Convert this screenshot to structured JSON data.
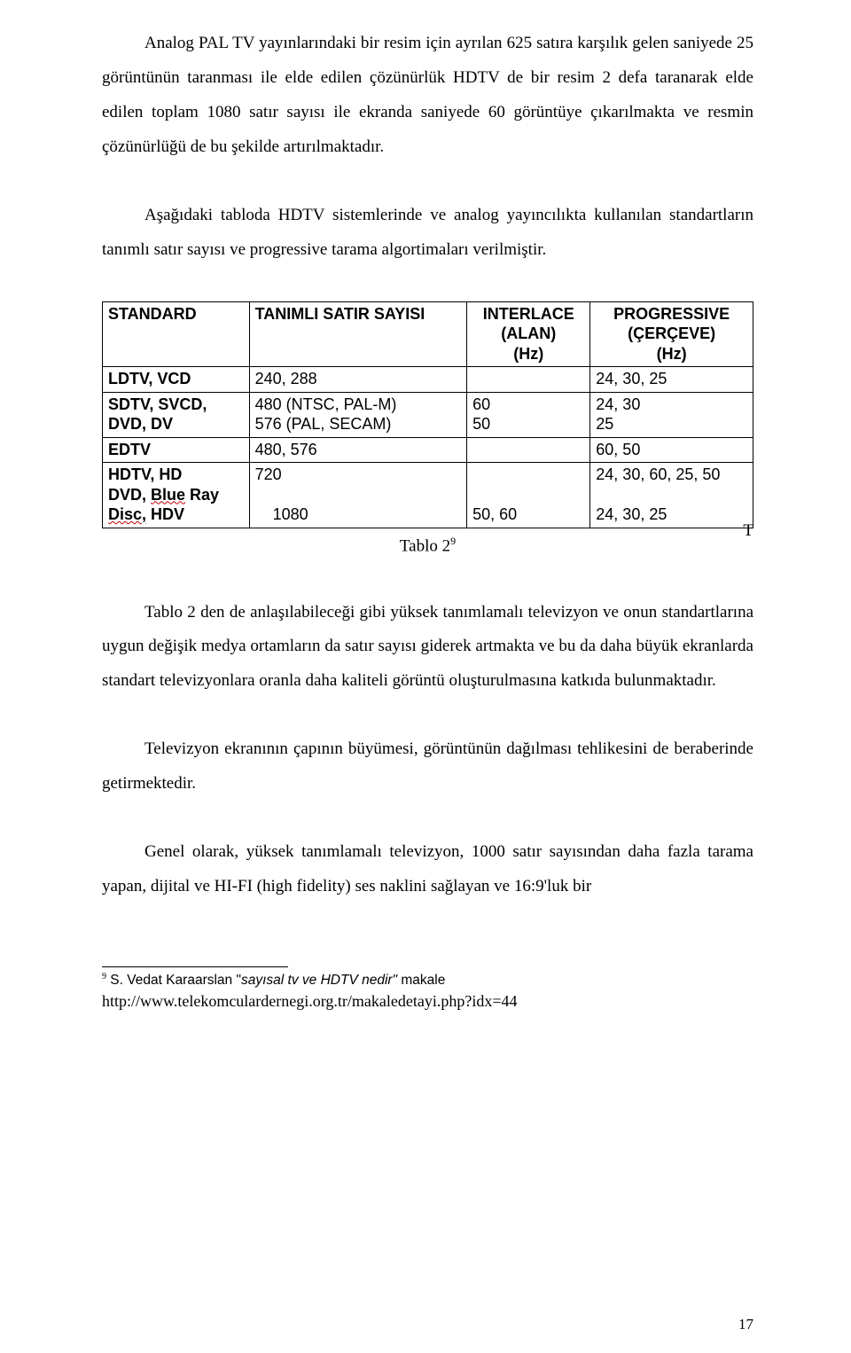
{
  "paragraphs": {
    "p1": "Analog PAL TV yayınlarındaki bir resim için ayrılan 625 satıra karşılık gelen saniyede 25 görüntünün taranması ile elde edilen çözünürlük HDTV de bir resim 2 defa taranarak elde edilen toplam 1080 satır sayısı ile ekranda saniyede 60 görüntüye çıkarılmakta ve resmin çözünürlüğü de bu şekilde artırılmaktadır.",
    "p2": "Aşağıdaki tabloda HDTV sistemlerinde ve analog yayıncılıkta kullanılan standartların tanımlı satır sayısı ve progressive tarama algortimaları verilmiştir.",
    "p3": "Tablo 2 den de anlaşılabileceği gibi yüksek tanımlamalı televizyon ve onun standartlarına uygun değişik medya ortamların da satır sayısı giderek artmakta ve bu da daha büyük ekranlarda standart televizyonlara oranla daha kaliteli görüntü oluşturulmasına katkıda bulunmaktadır.",
    "p4": "Televizyon ekranının çapının büyümesi, görüntünün dağılması tehlikesini de beraberinde getirmektedir.",
    "p5": "Genel olarak, yüksek tanımlamalı televizyon, 1000 satır sayısından daha fazla tarama yapan, dijital ve HI-FI (high fidelity) ses naklini sağlayan ve 16:9'luk bir"
  },
  "table": {
    "headers": {
      "c1": "STANDARD",
      "c2": "TANIMLI SATIR SAYISI",
      "c3_l1": "INTERLACE",
      "c3_l2": "(ALAN)",
      "c3_l3": "(Hz)",
      "c4_l1": "PROGRESSIVE",
      "c4_l2": "(ÇERÇEVE)",
      "c4_l3": "(Hz)"
    },
    "rows": {
      "r1": {
        "c1": "LDTV, VCD",
        "c2": "240, 288",
        "c3": "",
        "c4": "24, 30, 25"
      },
      "r2": {
        "c1a": "SDTV, SVCD,",
        "c1b": "DVD, DV",
        "c2a": "480 (NTSC, PAL-M)",
        "c2b": "576 (PAL, SECAM)",
        "c3a": "60",
        "c3b": "50",
        "c4a": "24, 30",
        "c4b": "25"
      },
      "r3": {
        "c1": "EDTV",
        "c2": "480, 576",
        "c3": "",
        "c4": "60, 50"
      },
      "r4": {
        "c1a": "HDTV, HD",
        "c1b_pre": "DVD, ",
        "c1b_s": "Blue",
        "c1b_post": " Ray",
        "c1c_s": "Disc,",
        "c1c_post": " HDV",
        "c2a": "720",
        "c2b": "",
        "c2c": "1080",
        "c3a": "",
        "c3b": "",
        "c3c": "50, 60",
        "c4a": "24, 30, 60, 25, 50",
        "c4b": "",
        "c4c": "24, 30, 25"
      }
    },
    "caption": "Tablo 2",
    "caption_sup": "9",
    "caption_T": "T"
  },
  "footnote": {
    "marker": "9",
    "author": " S. Vedat Karaarslan ",
    "title_quote_open": "\"",
    "title_italic": "sayısal tv ve HDTV nedir\"",
    "title_rest": " makale",
    "url": "http://www.telekomculardernegi.org.tr/makaledetayi.php?idx=44"
  },
  "page_number": "17"
}
